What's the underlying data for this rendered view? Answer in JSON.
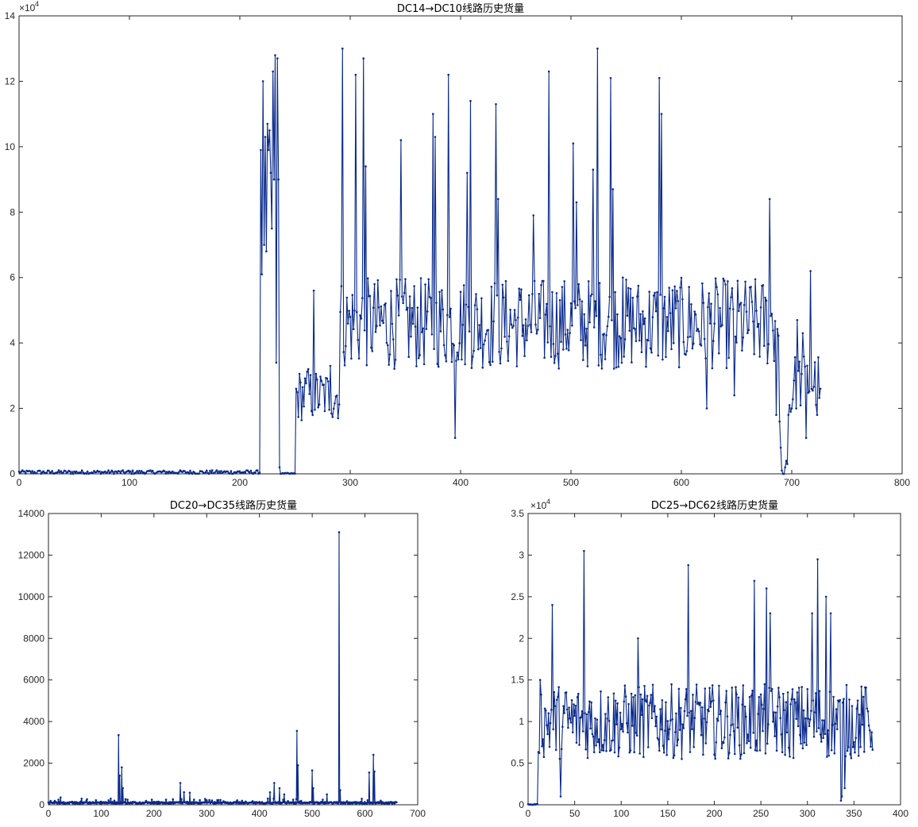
{
  "line_color": "#0a2a8c",
  "chart_data": [
    {
      "type": "line",
      "title": "DC14→DC10线路历史货量",
      "exponent_label": "×10",
      "exponent_power": "4",
      "xlim": [
        0,
        800
      ],
      "ylim": [
        0,
        14
      ],
      "xticks": [
        "0",
        "100",
        "200",
        "300",
        "400",
        "500",
        "600",
        "700",
        "800"
      ],
      "yticks": [
        "0",
        "2",
        "4",
        "6",
        "8",
        "10",
        "12",
        "14"
      ],
      "segments": [
        {
          "start": 0,
          "end": 218,
          "base": 0.05,
          "noise": 0.06
        },
        {
          "start": 219,
          "end": 236,
          "values": [
            9.9,
            6.1,
            12.0,
            7.0,
            10.3,
            6.8,
            10.7,
            9.9,
            10.5,
            9.2,
            7.5,
            12.3,
            9.0,
            12.8,
            3.4,
            12.7,
            9.0,
            0.2
          ]
        },
        {
          "start": 237,
          "end": 250,
          "base": 0.0,
          "noise": 0.03
        },
        {
          "start": 251,
          "end": 290,
          "base": 2.4,
          "noise": 0.8,
          "peaks": [
            [
              267,
              5.6
            ],
            [
              262,
              3.2
            ],
            [
              282,
              3.3
            ]
          ]
        },
        {
          "start": 291,
          "end": 688,
          "base": 4.6,
          "noise": 1.4,
          "peaks": [
            [
              293,
              13.0
            ],
            [
              305,
              12.2
            ],
            [
              312,
              12.7
            ],
            [
              314,
              9.4
            ],
            [
              346,
              10.2
            ],
            [
              375,
              11.0
            ],
            [
              377,
              10.3
            ],
            [
              389,
              12.2
            ],
            [
              395,
              1.1
            ],
            [
              406,
              9.2
            ],
            [
              409,
              11.4
            ],
            [
              432,
              11.3
            ],
            [
              434,
              8.4
            ],
            [
              466,
              7.9
            ],
            [
              480,
              12.3
            ],
            [
              502,
              10.1
            ],
            [
              505,
              8.3
            ],
            [
              520,
              9.3
            ],
            [
              524,
              13.0
            ],
            [
              536,
              12.1
            ],
            [
              538,
              8.7
            ],
            [
              547,
              6.0
            ],
            [
              580,
              12.1
            ],
            [
              582,
              11.0
            ],
            [
              623,
              2.0
            ],
            [
              648,
              2.4
            ],
            [
              680,
              8.4
            ],
            [
              686,
              1.8
            ]
          ]
        },
        {
          "start": 689,
          "end": 700,
          "values": [
            1.6,
            0.8,
            0.1,
            0.0,
            0.0,
            0.2,
            0.4,
            0.3,
            1.8,
            2.1,
            1.9,
            2.0
          ]
        },
        {
          "start": 701,
          "end": 726,
          "base": 2.8,
          "noise": 0.9,
          "peaks": [
            [
              705,
              4.7
            ],
            [
              710,
              4.3
            ],
            [
              717,
              6.2
            ],
            [
              713,
              1.1
            ],
            [
              723,
              1.8
            ],
            [
              726,
              2.6
            ]
          ]
        }
      ]
    },
    {
      "type": "line",
      "title": "DC20→DC35线路历史货量",
      "xlim": [
        0,
        700
      ],
      "ylim": [
        0,
        14000
      ],
      "xticks": [
        "0",
        "100",
        "200",
        "300",
        "400",
        "500",
        "600",
        "700"
      ],
      "yticks": [
        "0",
        "2000",
        "4000",
        "6000",
        "8000",
        "10000",
        "12000",
        "14000"
      ],
      "segments": [
        {
          "start": 0,
          "end": 660,
          "base": 60,
          "noise": 120,
          "peaks": [
            [
              23,
              350
            ],
            [
              72,
              200
            ],
            [
              133,
              3350
            ],
            [
              135,
              1400
            ],
            [
              139,
              1800
            ],
            [
              141,
              800
            ],
            [
              250,
              1050
            ],
            [
              257,
              600
            ],
            [
              268,
              580
            ],
            [
              287,
              220
            ],
            [
              320,
              220
            ],
            [
              420,
              600
            ],
            [
              428,
              1050
            ],
            [
              438,
              800
            ],
            [
              447,
              500
            ],
            [
              471,
              3550
            ],
            [
              473,
              1900
            ],
            [
              500,
              1650
            ],
            [
              502,
              800
            ],
            [
              528,
              500
            ],
            [
              551,
              13100
            ],
            [
              553,
              700
            ],
            [
              608,
              1550
            ],
            [
              616,
              2400
            ],
            [
              618,
              1600
            ],
            [
              630,
              200
            ]
          ]
        }
      ]
    },
    {
      "type": "line",
      "title": "DC25→DC62线路历史货量",
      "exponent_label": "×10",
      "exponent_power": "4",
      "xlim": [
        0,
        400
      ],
      "ylim": [
        0,
        3.5
      ],
      "xticks": [
        "0",
        "50",
        "100",
        "150",
        "200",
        "250",
        "300",
        "350",
        "400"
      ],
      "yticks": [
        "0",
        "0.5",
        "1",
        "1.5",
        "2",
        "2.5",
        "3",
        "3.5"
      ],
      "segments": [
        {
          "start": 0,
          "end": 10,
          "base": 0.0,
          "noise": 0.01
        },
        {
          "start": 11,
          "end": 370,
          "base": 1.0,
          "noise": 0.45,
          "peaks": [
            [
              13,
              1.5
            ],
            [
              26,
              2.4
            ],
            [
              35,
              0.1
            ],
            [
              60,
              3.05
            ],
            [
              118,
              2.0
            ],
            [
              172,
              2.88
            ],
            [
              243,
              2.69
            ],
            [
              256,
              2.6
            ],
            [
              260,
              2.3
            ],
            [
              305,
              2.3
            ],
            [
              311,
              2.95
            ],
            [
              320,
              2.5
            ],
            [
              325,
              2.3
            ],
            [
              336,
              0.05
            ],
            [
              337,
              0.1
            ],
            [
              340,
              0.2
            ]
          ]
        }
      ]
    }
  ]
}
